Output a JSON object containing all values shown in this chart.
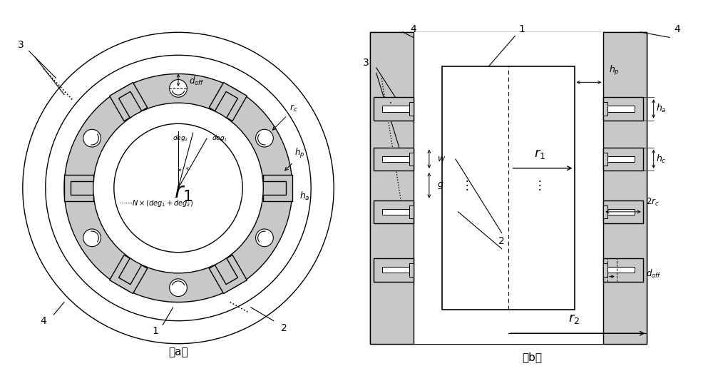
{
  "fig_width": 10.0,
  "fig_height": 5.27,
  "bg_color": "#ffffff",
  "gray_light": "#c8c8c8",
  "line_color": "#000000"
}
